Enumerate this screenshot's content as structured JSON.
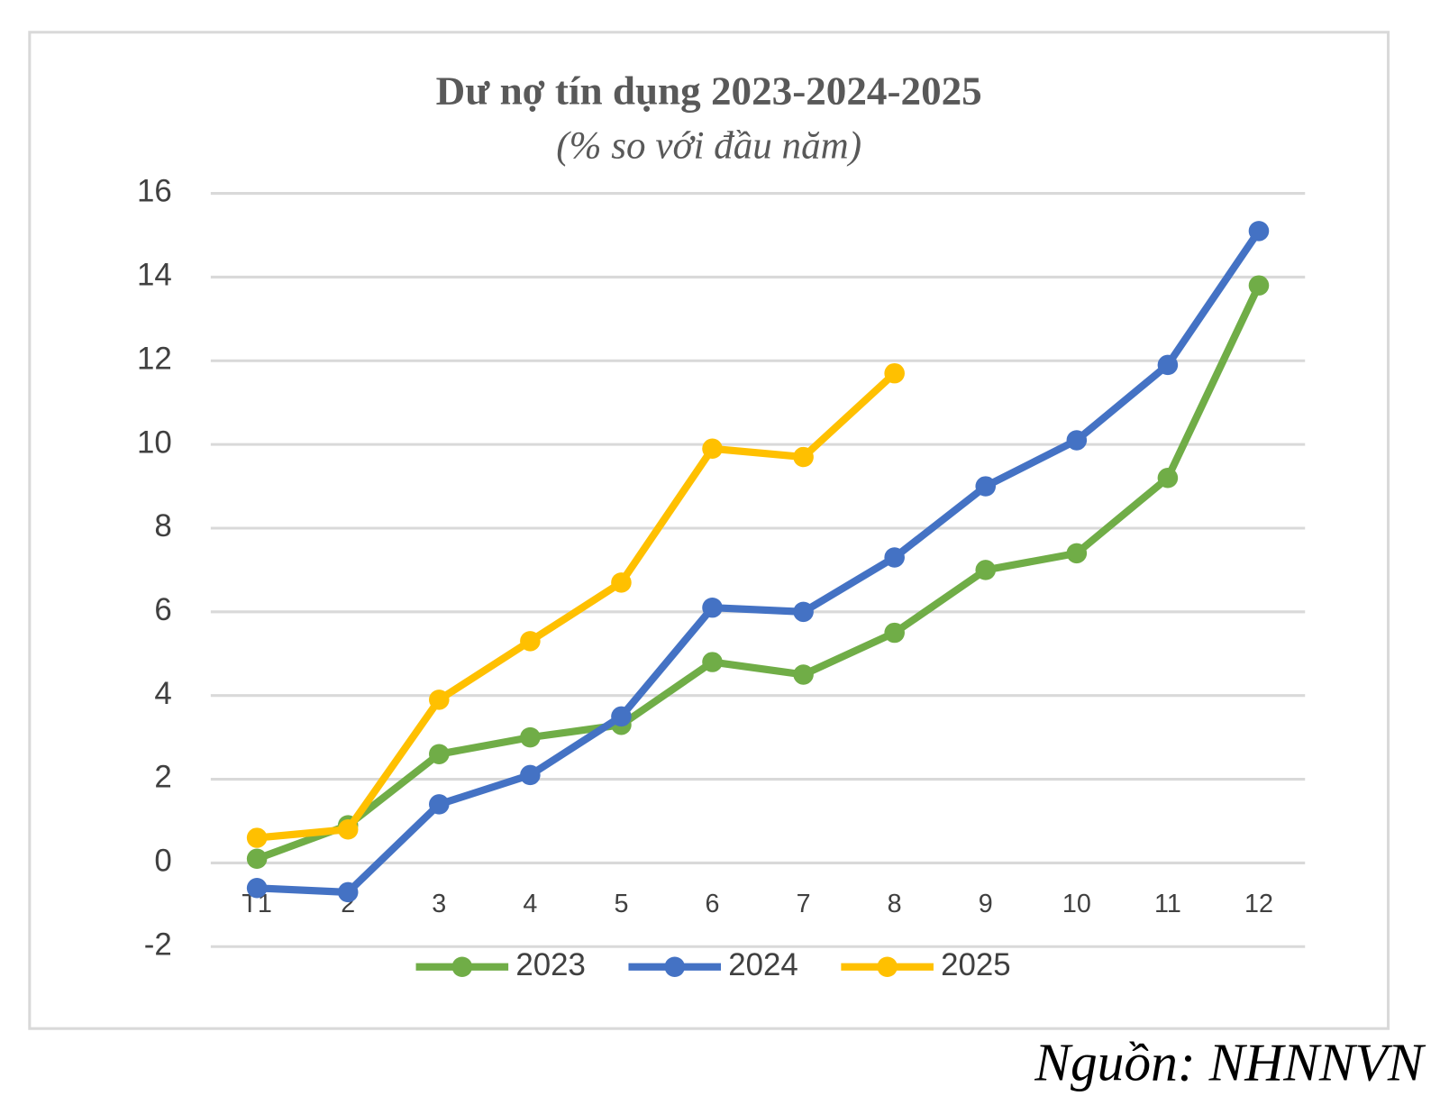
{
  "chart_data": {
    "type": "line",
    "title": "Dư nợ tín dụng 2023-2024-2025",
    "subtitle": "(% so với đầu năm)",
    "source": "Nguồn: NHNNVN",
    "categories": [
      "T1",
      "2",
      "3",
      "4",
      "5",
      "6",
      "7",
      "8",
      "9",
      "10",
      "11",
      "12"
    ],
    "series": [
      {
        "name": "2023",
        "color": "#70ad47",
        "values": [
          0.1,
          0.9,
          2.6,
          3.0,
          3.3,
          4.8,
          4.5,
          5.5,
          7.0,
          7.4,
          9.2,
          13.8
        ]
      },
      {
        "name": "2024",
        "color": "#4472c4",
        "values": [
          -0.6,
          -0.7,
          1.4,
          2.1,
          3.5,
          6.1,
          6.0,
          7.3,
          9.0,
          10.1,
          11.9,
          15.1
        ]
      },
      {
        "name": "2025",
        "color": "#ffc000",
        "values": [
          0.6,
          0.8,
          3.9,
          5.3,
          6.7,
          9.9,
          9.7,
          11.7,
          null,
          null,
          null,
          null
        ]
      }
    ],
    "ylim": [
      -2,
      16
    ],
    "yticks": [
      -2,
      0,
      2,
      4,
      6,
      8,
      10,
      12,
      14,
      16
    ],
    "grid": true,
    "legend": "bottom"
  }
}
